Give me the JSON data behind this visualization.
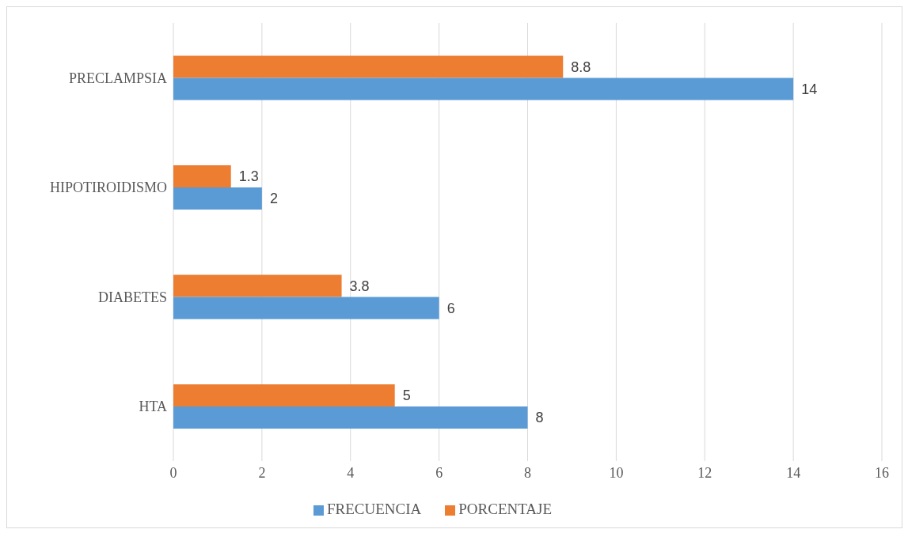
{
  "chart_data": {
    "type": "bar",
    "orientation": "horizontal",
    "categories": [
      "PRECLAMPSIA",
      "HIPOTIROIDISMO",
      "DIABETES",
      "HTA"
    ],
    "series": [
      {
        "name": "PORCENTAJE",
        "color": "#ed7d31",
        "values": [
          8.8,
          1.3,
          3.8,
          5
        ]
      },
      {
        "name": "FRECUENCIA",
        "color": "#5b9bd5",
        "values": [
          14,
          2,
          6,
          8
        ]
      }
    ],
    "xlim": [
      0,
      16
    ],
    "xticks": [
      0,
      2,
      4,
      6,
      8,
      10,
      12,
      14,
      16
    ],
    "grid": "x",
    "legend": "bottom",
    "data_labels": true
  }
}
